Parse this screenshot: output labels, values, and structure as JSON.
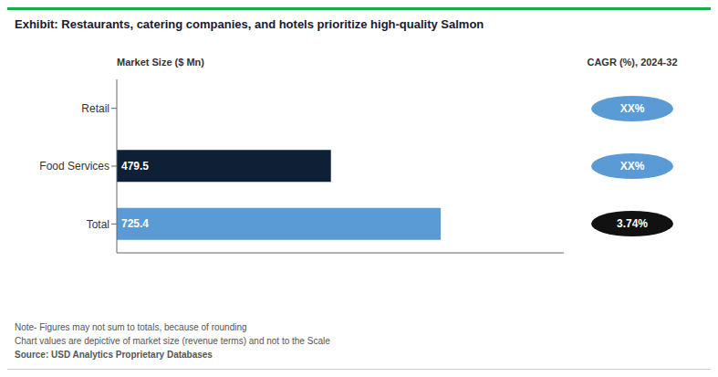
{
  "chart_data": {
    "type": "bar",
    "orientation": "horizontal",
    "title": "Exhibit: Restaurants, catering companies, and hotels prioritize high-quality Salmon",
    "xlabel": "Market Size ($ Mn)",
    "categories": [
      "Retail",
      "Food Services",
      "Total"
    ],
    "values": [
      0,
      479.5,
      725.4
    ],
    "value_labels": [
      null,
      "479.5",
      "725.4"
    ],
    "data_labels": true,
    "colors": [
      "#5b9bd5",
      "#0d2035",
      "#5b9bd5"
    ],
    "xlim": [
      0,
      1001.052
    ],
    "tick_labels": false,
    "grid": false,
    "annotations": {
      "header": "CAGR (%), 2024-32",
      "labels": [
        "XX%",
        "XX%",
        "3.74%"
      ],
      "colors": [
        "#5b9bd5",
        "#5b9bd5",
        "#111111"
      ],
      "notes": [
        "Note- Figures may not sum to totals, because of rounding",
        "Chart values are depictive of market size (revenue terms) and not to the Scale",
        "Source: USD Analytics Proprietary Databases"
      ]
    }
  }
}
